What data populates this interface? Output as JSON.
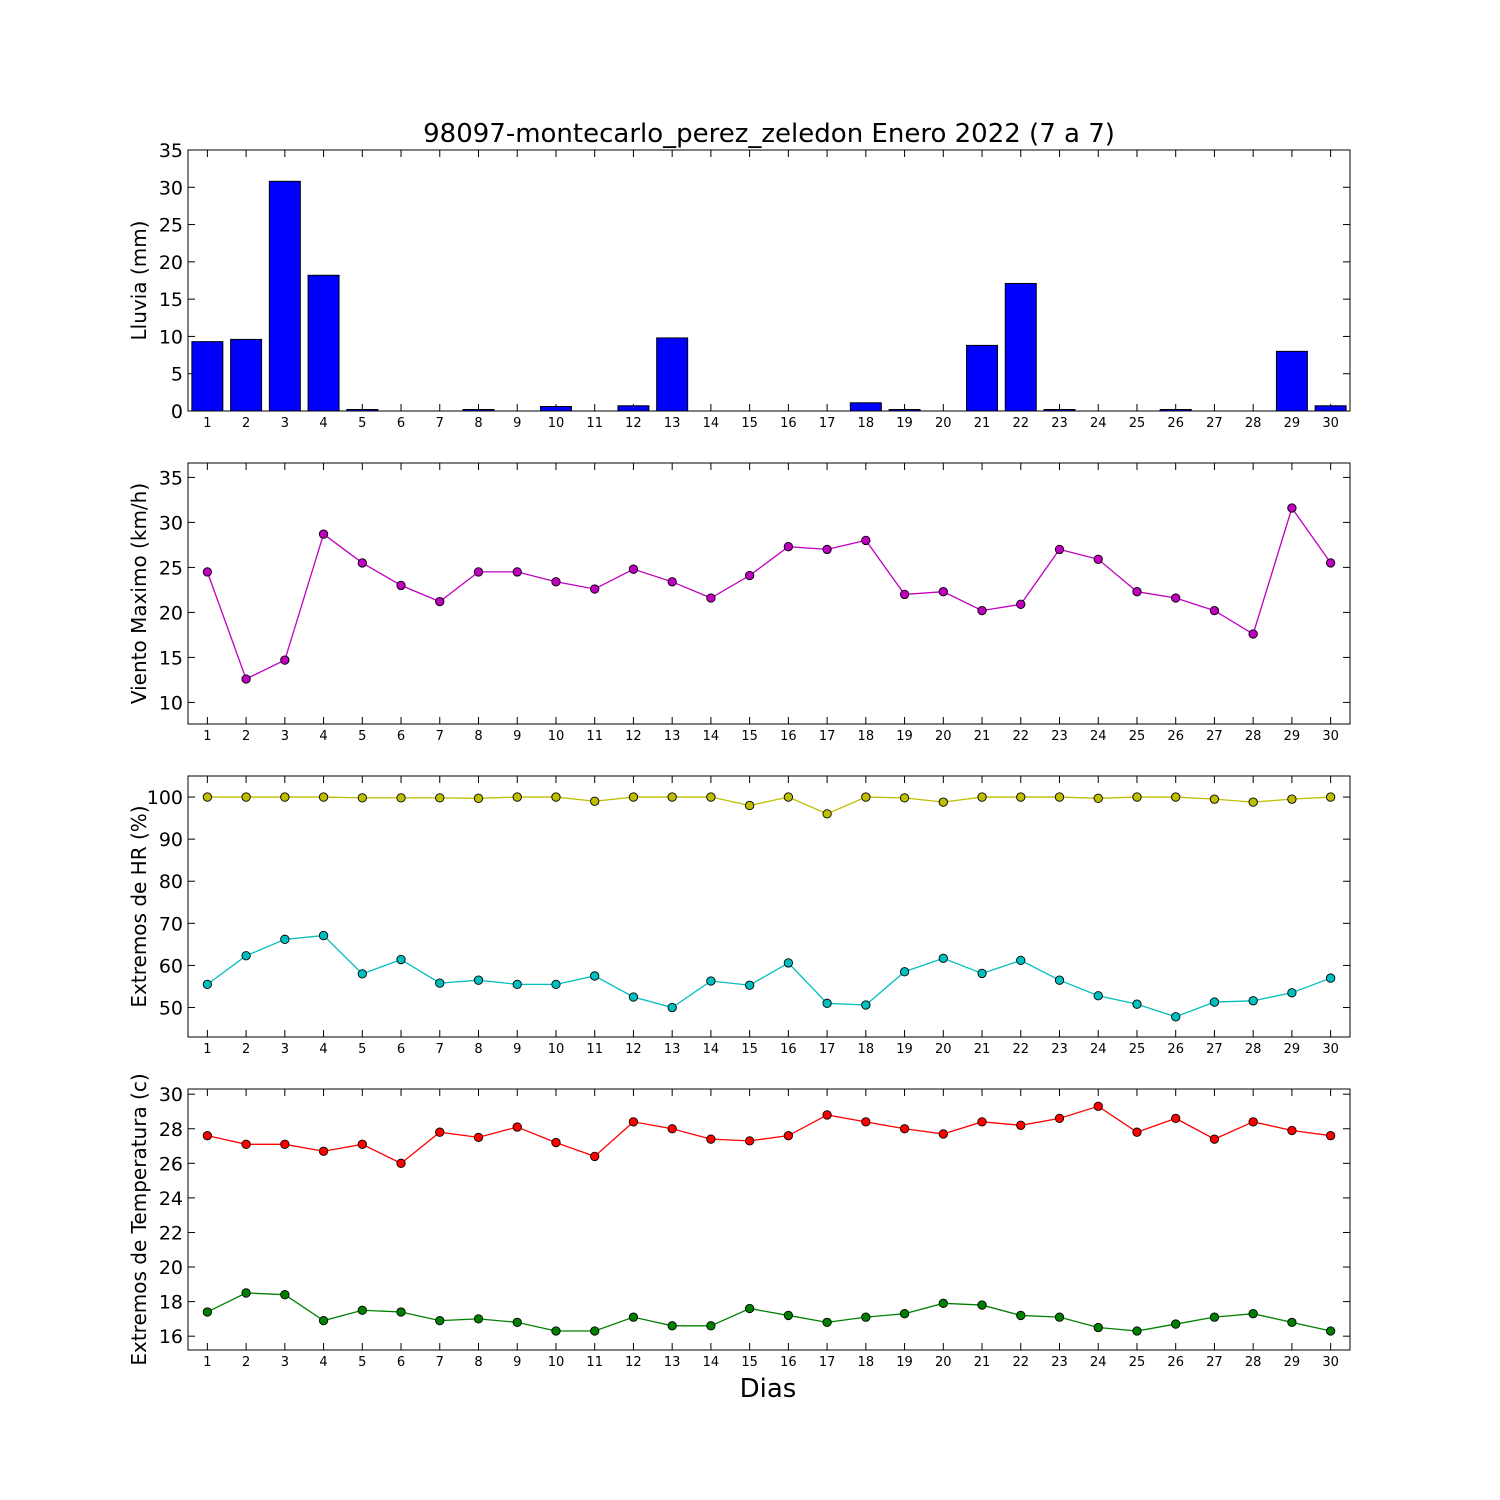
{
  "figure": {
    "title": "98097-montecarlo_perez_zeledon Enero 2022  (7 a 7)",
    "xlabel": "Dias"
  },
  "chart_data": [
    {
      "type": "bar",
      "ylabel": "Lluvia (mm)",
      "ylim": [
        0,
        35
      ],
      "yticks": [
        0,
        5,
        10,
        15,
        20,
        25,
        30,
        35
      ],
      "x": [
        1,
        2,
        3,
        4,
        5,
        6,
        7,
        8,
        9,
        10,
        11,
        12,
        13,
        14,
        15,
        16,
        17,
        18,
        19,
        20,
        21,
        22,
        23,
        24,
        25,
        26,
        27,
        28,
        29,
        30
      ],
      "series": [
        {
          "color": "#0000ff",
          "values": [
            9.3,
            9.6,
            30.8,
            18.2,
            0.2,
            0.0,
            0.0,
            0.2,
            0.0,
            0.6,
            0.0,
            0.7,
            9.8,
            0.0,
            0.0,
            0.0,
            0.0,
            1.1,
            0.2,
            0.0,
            8.8,
            17.1,
            0.2,
            0.0,
            0.0,
            0.2,
            0.0,
            0.0,
            8.0,
            0.7
          ]
        }
      ]
    },
    {
      "type": "line",
      "ylabel": "Viento Maximo (km/h)",
      "ylim": [
        7.6,
        36.6
      ],
      "yticks": [
        10,
        15,
        20,
        25,
        30,
        35
      ],
      "x": [
        1,
        2,
        3,
        4,
        5,
        6,
        7,
        8,
        9,
        10,
        11,
        12,
        13,
        14,
        15,
        16,
        17,
        18,
        19,
        20,
        21,
        22,
        23,
        24,
        25,
        26,
        27,
        28,
        29,
        30
      ],
      "series": [
        {
          "color": "#bf00bf",
          "values": [
            24.5,
            12.6,
            14.7,
            28.7,
            25.5,
            23.0,
            21.2,
            24.5,
            24.5,
            23.4,
            22.6,
            24.8,
            23.4,
            21.6,
            24.1,
            27.3,
            27.0,
            28.0,
            22.0,
            22.3,
            20.2,
            20.9,
            27.0,
            25.9,
            22.3,
            21.6,
            20.2,
            17.6,
            31.6,
            25.5
          ]
        }
      ]
    },
    {
      "type": "line",
      "ylabel": "Extremos de HR (%)",
      "ylim": [
        43,
        105
      ],
      "yticks": [
        50,
        60,
        70,
        80,
        90,
        100
      ],
      "x": [
        1,
        2,
        3,
        4,
        5,
        6,
        7,
        8,
        9,
        10,
        11,
        12,
        13,
        14,
        15,
        16,
        17,
        18,
        19,
        20,
        21,
        22,
        23,
        24,
        25,
        26,
        27,
        28,
        29,
        30
      ],
      "series": [
        {
          "color": "#bfbf00",
          "values": [
            100,
            100,
            100,
            100,
            99.8,
            99.8,
            99.8,
            99.7,
            100,
            100,
            99,
            100,
            100,
            100,
            98,
            100,
            96,
            100,
            99.8,
            98.8,
            100,
            100,
            100,
            99.7,
            100,
            100,
            99.5,
            98.8,
            99.5,
            100
          ]
        },
        {
          "color": "#00bfbf",
          "values": [
            55.5,
            62.3,
            66.2,
            67.1,
            58.0,
            61.4,
            55.8,
            56.5,
            55.5,
            55.5,
            57.5,
            52.5,
            50.0,
            56.3,
            55.3,
            60.6,
            51.0,
            50.6,
            58.5,
            61.7,
            58.1,
            61.2,
            56.5,
            52.8,
            50.8,
            47.8,
            51.3,
            51.6,
            53.5,
            57.0
          ]
        }
      ]
    },
    {
      "type": "line",
      "ylabel": "Extremos de Temperatura (c)",
      "ylim": [
        15.2,
        30.3
      ],
      "yticks": [
        16,
        18,
        20,
        22,
        24,
        26,
        28,
        30
      ],
      "x": [
        1,
        2,
        3,
        4,
        5,
        6,
        7,
        8,
        9,
        10,
        11,
        12,
        13,
        14,
        15,
        16,
        17,
        18,
        19,
        20,
        21,
        22,
        23,
        24,
        25,
        26,
        27,
        28,
        29,
        30
      ],
      "series": [
        {
          "color": "#ff0000",
          "values": [
            27.6,
            27.1,
            27.1,
            26.7,
            27.1,
            26.0,
            27.8,
            27.5,
            28.1,
            27.2,
            26.4,
            28.4,
            28.0,
            27.4,
            27.3,
            27.6,
            28.8,
            28.4,
            28.0,
            27.7,
            28.4,
            28.2,
            28.6,
            29.3,
            27.8,
            28.6,
            27.4,
            28.4,
            27.9,
            27.6
          ]
        },
        {
          "color": "#008000",
          "values": [
            17.4,
            18.5,
            18.4,
            16.9,
            17.5,
            17.4,
            16.9,
            17.0,
            16.8,
            16.3,
            16.3,
            17.1,
            16.6,
            16.6,
            17.6,
            17.2,
            16.8,
            17.1,
            17.3,
            17.9,
            17.8,
            17.2,
            17.1,
            16.5,
            16.3,
            16.7,
            17.1,
            17.3,
            16.8,
            16.3
          ]
        }
      ]
    }
  ]
}
